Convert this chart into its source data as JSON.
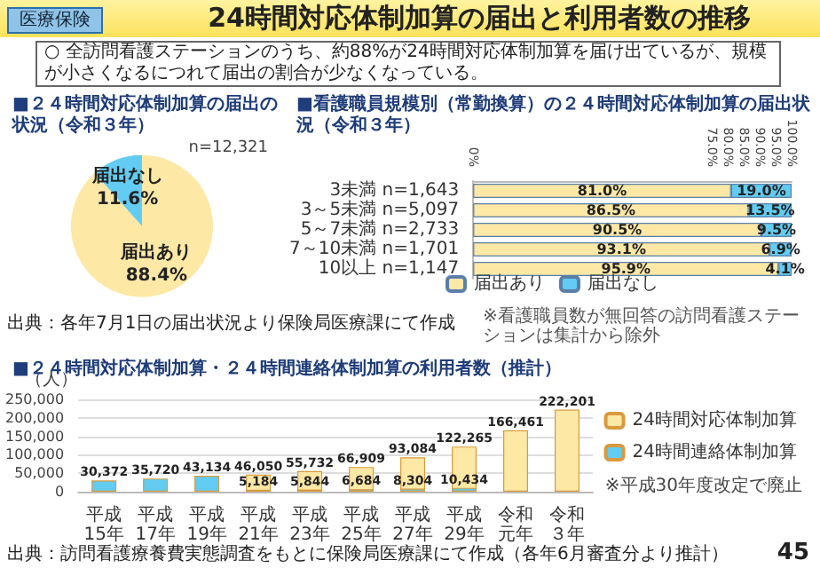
{
  "chart_data": [
    {
      "type": "other",
      "title": "24時間対応体制加算の届出と利用者数の推移",
      "annotations": [
        "医療保険",
        "○ 全訪問看護ステーションのうち、約88%が24時間対応体制加算を届け出ているが、規模が小さくなるにつれて届出の割合が少なくなっている。",
        "出典：各年7月1日の届出状況より保険局医療課にて作成",
        "※看護職員数が無回答の訪問看護ステーションは集計から除外",
        "出典：訪問看護療養費実態調査をもとに保険局医療課にて作成（各年6月審査分より推計）",
        "45"
      ]
    },
    {
      "type": "pie",
      "title": "■２４時間対応体制加算の届出の状況（令和３年）",
      "subtitle": "n=12,321",
      "categories": [
        "届出あり",
        "届出なし"
      ],
      "values": [
        88.4,
        11.6
      ],
      "colors": [
        "#fde8a6",
        "#62ccf2"
      ],
      "value_labels": [
        "88.4%",
        "11.6%"
      ]
    },
    {
      "type": "bar",
      "orientation": "horizontal",
      "stacked": true,
      "title": "■看護職員規模別（常勤換算）の２４時間対応体制加算の届出状況（令和３年）",
      "categories": [
        "3未満 n=1,643",
        "3～5未満 n=5,097",
        "5～7未満 n=2,733",
        "7～10未満 n=1,701",
        "10以上 n=1,147"
      ],
      "series": [
        {
          "name": "届出あり",
          "color": "#fde8a6",
          "values": [
            81.0,
            86.5,
            90.5,
            93.1,
            95.9
          ],
          "value_labels": [
            "81.0%",
            "86.5%",
            "90.5%",
            "93.1%",
            "95.9%"
          ]
        },
        {
          "name": "届出なし",
          "color": "#62ccf2",
          "values": [
            19.0,
            13.5,
            9.5,
            6.9,
            4.1
          ],
          "value_labels": [
            "19.0%",
            "13.5%",
            "9.5%",
            "6.9%",
            "4.1%"
          ]
        }
      ],
      "xlim": [
        0,
        100
      ],
      "xticks": [
        {
          "value": 0,
          "label": "0%"
        },
        {
          "value": 75,
          "label": "75.0%"
        },
        {
          "value": 80,
          "label": "80.0%"
        },
        {
          "value": 85,
          "label": "85.0%"
        },
        {
          "value": 90,
          "label": "90.0%"
        },
        {
          "value": 95,
          "label": "95.0%"
        },
        {
          "value": 100,
          "label": "100.0%"
        }
      ],
      "legend": "bottom"
    },
    {
      "type": "bar",
      "title": "■２４時間対応体制加算・２４時間連絡体制加算の利用者数（推計）",
      "ylabel": "（人）",
      "categories": [
        "平成15年",
        "平成17年",
        "平成19年",
        "平成21年",
        "平成23年",
        "平成25年",
        "平成27年",
        "平成29年",
        "令和元年",
        "令和３年"
      ],
      "series": [
        {
          "name": "24時間対応体制加算",
          "color": "#fde8a6",
          "values": [
            null,
            null,
            null,
            46050,
            55732,
            66909,
            93084,
            122265,
            166461,
            222201
          ],
          "value_labels": [
            null,
            null,
            null,
            "46,050",
            "55,732",
            "66,909",
            "93,084",
            "122,265",
            "166,461",
            "222,201"
          ]
        },
        {
          "name": "24時間連絡体制加算",
          "color": "#62ccf2",
          "values": [
            30372,
            35720,
            43134,
            5184,
            5844,
            6684,
            8304,
            10434,
            null,
            null
          ],
          "value_labels": [
            "30,372",
            "35,720",
            "43,134",
            "5,184",
            "5,844",
            "6,684",
            "8,304",
            "10,434",
            null,
            null
          ]
        }
      ],
      "ylim": [
        0,
        250000
      ],
      "yticks": [
        0,
        {
          "value": 50000,
          "label": "50,000"
        },
        {
          "value": 100000,
          "label": "100,000"
        },
        {
          "value": 150000,
          "label": "150,000"
        },
        {
          "value": 200000,
          "label": "200,000"
        },
        {
          "value": 250000,
          "label": "250,000"
        }
      ],
      "grid": "y",
      "legend": "right",
      "annotations": [
        "※平成30年度改定で廃止"
      ]
    }
  ]
}
